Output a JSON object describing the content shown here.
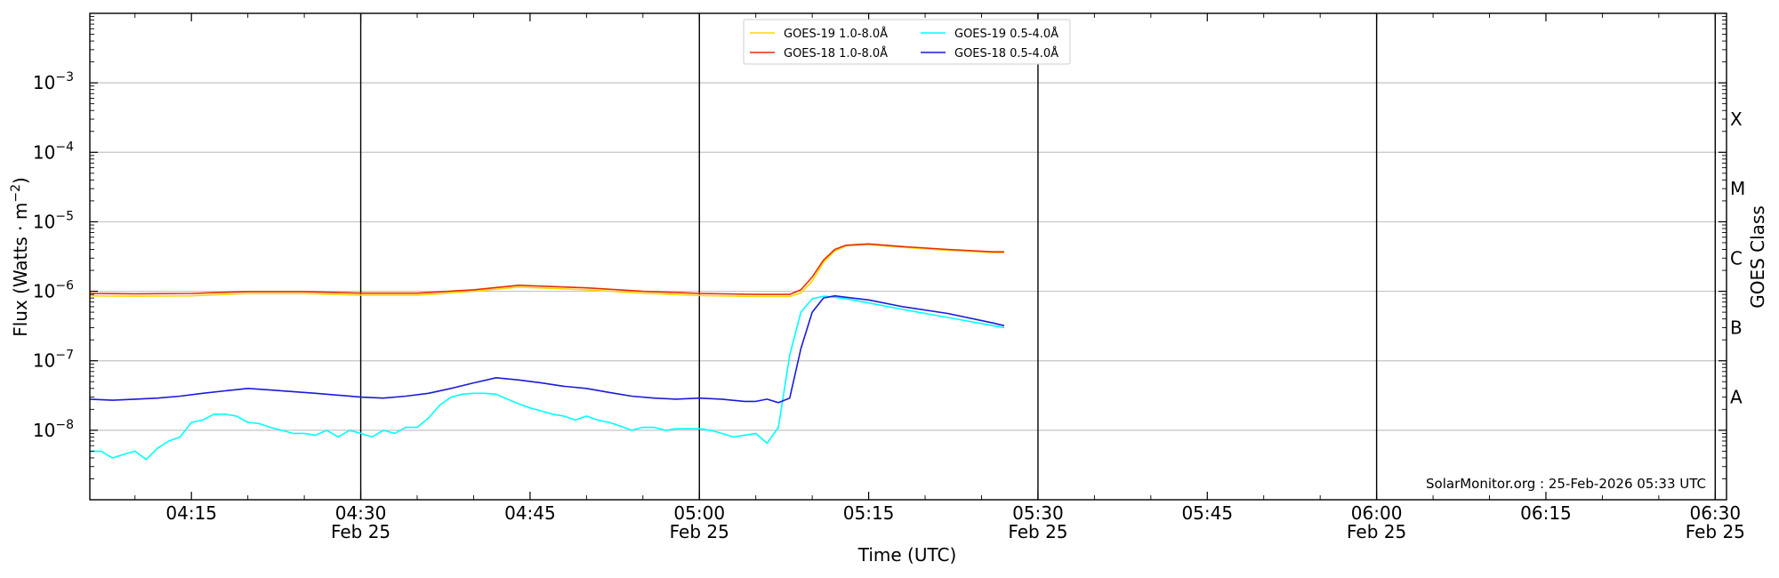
{
  "chart_data": {
    "type": "line",
    "xlabel": "Time (UTC)",
    "ylabel": "Flux (Watts · m",
    "ylabel_sup": "−2",
    "ylabel_close": ")",
    "right_label": "GOES Class",
    "credit": "SolarMonitor.org : 25-Feb-2026 05:33 UTC",
    "xlim": [
      "04:06",
      "06:31"
    ],
    "ylim": [
      1e-09,
      0.01
    ],
    "yscale": "log",
    "grid": "horizontal at decades",
    "legend_position": "top-center",
    "x_ticks": [
      {
        "time": "04:15",
        "label": "04:15",
        "date": ""
      },
      {
        "time": "04:30",
        "label": "04:30",
        "date": "Feb 25"
      },
      {
        "time": "04:45",
        "label": "04:45",
        "date": ""
      },
      {
        "time": "05:00",
        "label": "05:00",
        "date": "Feb 25"
      },
      {
        "time": "05:15",
        "label": "05:15",
        "date": ""
      },
      {
        "time": "05:30",
        "label": "05:30",
        "date": "Feb 25"
      },
      {
        "time": "05:45",
        "label": "05:45",
        "date": ""
      },
      {
        "time": "06:00",
        "label": "06:00",
        "date": "Feb 25"
      },
      {
        "time": "06:15",
        "label": "06:15",
        "date": ""
      },
      {
        "time": "06:30",
        "label": "06:30",
        "date": "Feb 25"
      }
    ],
    "day_lines": [
      "04:30",
      "05:00",
      "05:30",
      "06:00",
      "06:30"
    ],
    "y_ticks": [
      {
        "value": 1e-08,
        "base": "10",
        "exp": "−8"
      },
      {
        "value": 1e-07,
        "base": "10",
        "exp": "−7"
      },
      {
        "value": 1e-06,
        "base": "10",
        "exp": "−6"
      },
      {
        "value": 1e-05,
        "base": "10",
        "exp": "−5"
      },
      {
        "value": 0.0001,
        "base": "10",
        "exp": "−4"
      },
      {
        "value": 0.001,
        "base": "10",
        "exp": "−3"
      }
    ],
    "classes": [
      {
        "label": "A",
        "value": 3e-08
      },
      {
        "label": "B",
        "value": 3e-07
      },
      {
        "label": "C",
        "value": 3e-06
      },
      {
        "label": "M",
        "value": 3e-05
      },
      {
        "label": "X",
        "value": 0.0003
      }
    ],
    "series": [
      {
        "name": "GOES-19 1.0-8.0Å",
        "color": "#ffd700",
        "x": [
          "04:06",
          "04:10",
          "04:15",
          "04:20",
          "04:25",
          "04:30",
          "04:35",
          "04:40",
          "04:44",
          "04:50",
          "04:55",
          "05:00",
          "05:05",
          "05:08",
          "05:09",
          "05:10",
          "05:11",
          "05:12",
          "05:13",
          "05:15",
          "05:18",
          "05:22",
          "05:26",
          "05:27"
        ],
        "y": [
          8.6e-07,
          8.5e-07,
          8.6e-07,
          9.3e-07,
          9.3e-07,
          8.8e-07,
          8.8e-07,
          1e-06,
          1.15e-06,
          1.05e-06,
          9.4e-07,
          8.7e-07,
          8.4e-07,
          8.4e-07,
          9.5e-07,
          1.4e-06,
          2.6e-06,
          3.8e-06,
          4.5e-06,
          4.7e-06,
          4.3e-06,
          3.9e-06,
          3.6e-06,
          3.6e-06
        ]
      },
      {
        "name": "GOES-18 1.0-8.0Å",
        "color": "#e62e00",
        "x": [
          "04:06",
          "04:10",
          "04:15",
          "04:20",
          "04:25",
          "04:30",
          "04:35",
          "04:40",
          "04:44",
          "04:50",
          "04:55",
          "05:00",
          "05:05",
          "05:08",
          "05:09",
          "05:10",
          "05:11",
          "05:12",
          "05:13",
          "05:15",
          "05:18",
          "05:22",
          "05:26",
          "05:27"
        ],
        "y": [
          9.3e-07,
          9.2e-07,
          9.3e-07,
          9.9e-07,
          9.9e-07,
          9.4e-07,
          9.4e-07,
          1.05e-06,
          1.22e-06,
          1.12e-06,
          1e-06,
          9.3e-07,
          9e-07,
          9e-07,
          1.05e-06,
          1.6e-06,
          2.8e-06,
          4e-06,
          4.6e-06,
          4.8e-06,
          4.4e-06,
          4e-06,
          3.7e-06,
          3.7e-06
        ]
      },
      {
        "name": "GOES-19 0.5-4.0Å",
        "color": "#00ffff",
        "x": [
          "04:06",
          "04:07",
          "04:08",
          "04:09",
          "04:10",
          "04:11",
          "04:12",
          "04:13",
          "04:14",
          "04:15",
          "04:16",
          "04:17",
          "04:18",
          "04:19",
          "04:20",
          "04:21",
          "04:22",
          "04:23",
          "04:24",
          "04:25",
          "04:26",
          "04:27",
          "04:28",
          "04:29",
          "04:30",
          "04:31",
          "04:32",
          "04:33",
          "04:34",
          "04:35",
          "04:36",
          "04:37",
          "04:38",
          "04:39",
          "04:40",
          "04:41",
          "04:42",
          "04:43",
          "04:44",
          "04:45",
          "04:46",
          "04:47",
          "04:48",
          "04:49",
          "04:50",
          "04:51",
          "04:52",
          "04:53",
          "04:54",
          "04:55",
          "04:56",
          "04:57",
          "04:58",
          "04:59",
          "05:00",
          "05:01",
          "05:02",
          "05:03",
          "05:04",
          "05:05",
          "05:06",
          "05:07",
          "05:08",
          "05:09",
          "05:10",
          "05:11",
          "05:12",
          "05:13",
          "05:15",
          "05:18",
          "05:22",
          "05:26",
          "05:27"
        ],
        "y": [
          5e-09,
          5e-09,
          4e-09,
          4.5e-09,
          5e-09,
          3.8e-09,
          5.5e-09,
          7e-09,
          8e-09,
          1.3e-08,
          1.4e-08,
          1.7e-08,
          1.7e-08,
          1.6e-08,
          1.3e-08,
          1.25e-08,
          1.1e-08,
          1e-08,
          9e-09,
          9e-09,
          8.5e-09,
          1e-08,
          8e-09,
          1e-08,
          9e-09,
          8e-09,
          1e-08,
          9e-09,
          1.1e-08,
          1.1e-08,
          1.5e-08,
          2.3e-08,
          3e-08,
          3.3e-08,
          3.4e-08,
          3.4e-08,
          3.3e-08,
          2.8e-08,
          2.4e-08,
          2.1e-08,
          1.9e-08,
          1.7e-08,
          1.6e-08,
          1.4e-08,
          1.6e-08,
          1.4e-08,
          1.3e-08,
          1.15e-08,
          1e-08,
          1.1e-08,
          1.1e-08,
          1e-08,
          1.05e-08,
          1.05e-08,
          1.05e-08,
          1e-08,
          9e-09,
          8e-09,
          8.5e-09,
          9e-09,
          6.5e-09,
          1.1e-08,
          1.2e-07,
          5e-07,
          7.8e-07,
          8.5e-07,
          8.2e-07,
          7.8e-07,
          6.8e-07,
          5.5e-07,
          4.2e-07,
          3.2e-07,
          3e-07
        ]
      },
      {
        "name": "GOES-18 0.5-4.0Å",
        "color": "#1a1ad9",
        "x": [
          "04:06",
          "04:08",
          "04:10",
          "04:12",
          "04:14",
          "04:16",
          "04:18",
          "04:20",
          "04:22",
          "04:24",
          "04:26",
          "04:28",
          "04:30",
          "04:32",
          "04:34",
          "04:36",
          "04:38",
          "04:40",
          "04:42",
          "04:44",
          "04:46",
          "04:48",
          "04:50",
          "04:52",
          "04:54",
          "04:56",
          "04:58",
          "05:00",
          "05:02",
          "05:04",
          "05:05",
          "05:06",
          "05:07",
          "05:08",
          "05:09",
          "05:10",
          "05:11",
          "05:12",
          "05:13",
          "05:15",
          "05:18",
          "05:22",
          "05:26",
          "05:27"
        ],
        "y": [
          2.8e-08,
          2.7e-08,
          2.8e-08,
          2.9e-08,
          3.1e-08,
          3.4e-08,
          3.7e-08,
          4e-08,
          3.8e-08,
          3.6e-08,
          3.4e-08,
          3.2e-08,
          3e-08,
          2.9e-08,
          3.1e-08,
          3.4e-08,
          4e-08,
          4.8e-08,
          5.7e-08,
          5.3e-08,
          4.8e-08,
          4.3e-08,
          4e-08,
          3.5e-08,
          3.1e-08,
          2.9e-08,
          2.8e-08,
          2.9e-08,
          2.8e-08,
          2.6e-08,
          2.6e-08,
          2.8e-08,
          2.5e-08,
          2.9e-08,
          1.5e-07,
          5e-07,
          8e-07,
          8.6e-07,
          8.2e-07,
          7.5e-07,
          6e-07,
          4.8e-07,
          3.5e-07,
          3.2e-07
        ]
      }
    ]
  }
}
